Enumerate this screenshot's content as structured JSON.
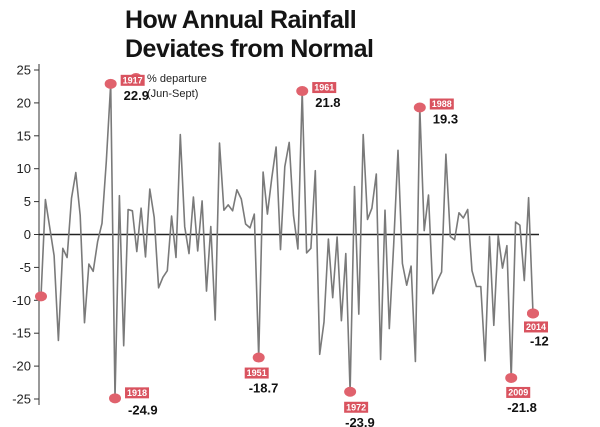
{
  "title_line1": "How Annual Rainfall",
  "title_line2": "Deviates from Normal",
  "chart_data": {
    "type": "line",
    "title": "How Annual Rainfall Deviates from Normal",
    "legend": {
      "label_line1": "% departure",
      "label_line2": "(Jun-Sept)",
      "marker_color": "#e0626d"
    },
    "ylim": [
      -25,
      25
    ],
    "yticks": [
      25,
      20,
      15,
      10,
      5,
      0,
      -5,
      -10,
      -15,
      -20,
      -25
    ],
    "line_color": "#7a7a7a",
    "highlight_color": "#e0626d",
    "grid": false,
    "x": [
      1901,
      1902,
      1903,
      1904,
      1905,
      1906,
      1907,
      1908,
      1909,
      1910,
      1911,
      1912,
      1913,
      1914,
      1915,
      1916,
      1917,
      1918,
      1919,
      1920,
      1921,
      1922,
      1923,
      1924,
      1925,
      1926,
      1927,
      1928,
      1929,
      1930,
      1931,
      1932,
      1933,
      1934,
      1935,
      1936,
      1937,
      1938,
      1939,
      1940,
      1941,
      1942,
      1943,
      1944,
      1945,
      1946,
      1947,
      1948,
      1949,
      1950,
      1951,
      1952,
      1953,
      1954,
      1955,
      1956,
      1957,
      1958,
      1959,
      1960,
      1961,
      1962,
      1963,
      1964,
      1965,
      1966,
      1967,
      1968,
      1969,
      1970,
      1971,
      1972,
      1973,
      1974,
      1975,
      1976,
      1977,
      1978,
      1979,
      1980,
      1981,
      1982,
      1983,
      1984,
      1985,
      1986,
      1987,
      1988,
      1989,
      1990,
      1991,
      1992,
      1993,
      1994,
      1995,
      1996,
      1997,
      1998,
      1999,
      2000,
      2001,
      2002,
      2003,
      2004,
      2005,
      2006,
      2007,
      2008,
      2009,
      2010,
      2011,
      2012,
      2013,
      2014
    ],
    "values": [
      -9.4,
      5.3,
      1.1,
      -3.2,
      -16.1,
      -2.1,
      -3.5,
      5.5,
      9.4,
      2.9,
      -13.4,
      -4.5,
      -5.6,
      -1.1,
      1.7,
      11.1,
      22.9,
      -24.9,
      5.9,
      -16.9,
      3.8,
      3.6,
      -2.6,
      4.0,
      -3.4,
      6.9,
      2.6,
      -8.1,
      -6.5,
      -5.5,
      2.8,
      -3.5,
      15.2,
      1.2,
      -2.9,
      5.7,
      -2.5,
      5.1,
      -8.6,
      1.2,
      -13.0,
      13.9,
      3.7,
      4.5,
      3.6,
      6.8,
      5.4,
      1.6,
      1.0,
      3.1,
      -18.7,
      9.5,
      3.1,
      8.6,
      13.3,
      -2.3,
      10.3,
      14.0,
      2.9,
      -2.2,
      21.8,
      -2.8,
      -2.1,
      9.7,
      -18.2,
      -13.3,
      -0.7,
      -9.6,
      -0.4,
      -13.1,
      -2.9,
      -23.9,
      7.3,
      -12.1,
      15.2,
      2.3,
      4.0,
      9.2,
      -19.0,
      3.7,
      -14.3,
      -1.5,
      12.8,
      -4.4,
      -7.7,
      -4.8,
      -19.3,
      19.3,
      0.6,
      6.0,
      -9.0,
      -7.1,
      -5.7,
      12.2,
      -0.3,
      -0.8,
      3.3,
      2.5,
      3.8,
      -5.5,
      -7.9,
      -7.9,
      -19.2,
      -0.3,
      -13.8,
      -0.2,
      -5.1,
      -1.7,
      -21.8,
      1.9,
      1.4,
      -7.0,
      5.6,
      -12.0
    ],
    "annotations": [
      {
        "year": "1917",
        "value": "22.9"
      },
      {
        "year": "1918",
        "value": "-24.9"
      },
      {
        "year": "1951",
        "value": "-18.7"
      },
      {
        "year": "1961",
        "value": "21.8"
      },
      {
        "year": "1972",
        "value": "-23.9"
      },
      {
        "year": "1988",
        "value": "19.3"
      },
      {
        "year": "2009",
        "value": "-21.8"
      },
      {
        "year": "2014",
        "value": "-12"
      }
    ]
  }
}
